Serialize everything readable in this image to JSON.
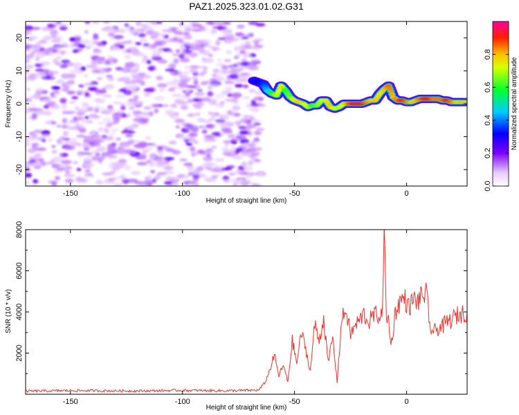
{
  "title": "PAZ1.2025.323.01.02.G31",
  "chart_data": [
    {
      "type": "heatmap",
      "xlabel": "Height of straight line (km)",
      "ylabel": "Frequency (Hz)",
      "xlim": [
        -170,
        27
      ],
      "ylim": [
        -25,
        25
      ],
      "xticks": [
        -150,
        -100,
        -50,
        0
      ],
      "yticks": [
        -20,
        -10,
        0,
        10,
        20
      ],
      "colorbar": {
        "label": "Normalized spectral amplitude",
        "range": [
          0,
          1
        ],
        "ticks": [
          "0.0",
          "0.2",
          "0.4",
          "0.6",
          "0.8"
        ],
        "colormap": "white-violet-blue-cyan-green-yellow-red-magenta"
      },
      "noise_region_x": [
        -170,
        -65
      ],
      "ridge": {
        "x": [
          -68,
          -64,
          -62,
          -60,
          -58,
          -56,
          -54,
          -52,
          -50,
          -48,
          -46,
          -44,
          -42,
          -40,
          -38,
          -36,
          -34,
          -32,
          -30,
          -28,
          -26,
          -24,
          -22,
          -20,
          -18,
          -16,
          -14,
          -12,
          -10,
          -8,
          -6,
          -4,
          -2,
          0,
          2,
          4,
          6,
          8,
          10,
          12,
          14,
          16,
          18,
          20,
          22,
          24,
          27
        ],
        "freq": [
          7,
          6,
          4,
          3,
          2.5,
          5.5,
          4,
          2,
          1,
          0.5,
          0,
          -1,
          -0.5,
          -0.5,
          1,
          1,
          -1,
          -1.5,
          -1,
          0,
          0,
          0,
          0,
          0,
          0.5,
          1,
          1,
          3,
          4.5,
          5.5,
          2,
          1,
          1,
          0.5,
          0.5,
          1,
          1.5,
          1.5,
          1.5,
          1.5,
          1.5,
          1,
          1,
          0.5,
          0.5,
          0.5,
          0.5
        ],
        "amp": [
          0.3,
          0.35,
          0.45,
          0.6,
          0.7,
          0.75,
          0.6,
          0.65,
          0.75,
          0.8,
          0.75,
          0.7,
          0.6,
          0.65,
          0.7,
          0.75,
          0.8,
          0.7,
          0.7,
          0.75,
          0.85,
          0.9,
          0.95,
          0.9,
          0.85,
          0.8,
          0.8,
          0.75,
          0.8,
          0.85,
          0.8,
          0.85,
          0.9,
          0.85,
          0.8,
          0.8,
          0.85,
          0.9,
          0.9,
          0.85,
          0.85,
          0.85,
          0.9,
          0.85,
          0.8,
          0.8,
          0.8
        ]
      }
    },
    {
      "type": "line",
      "xlabel": "Height of straight line (km)",
      "ylabel": "SNR (10 * v/v)",
      "xlim": [
        -170,
        27
      ],
      "ylim": [
        0,
        8000
      ],
      "xticks": [
        -150,
        -100,
        -50,
        0
      ],
      "yticks": [
        2000,
        4000,
        6000,
        8000
      ],
      "series": [
        {
          "color": "#e8322e",
          "x": [
            -170,
            -150,
            -120,
            -100,
            -80,
            -66,
            -63,
            -61,
            -59,
            -57,
            -55,
            -53,
            -51,
            -49,
            -47,
            -45,
            -43,
            -41,
            -39,
            -37,
            -35,
            -33,
            -31,
            -29,
            -27,
            -25,
            -23,
            -21,
            -19,
            -17,
            -15,
            -13,
            -11,
            -10,
            -9,
            -8,
            -7,
            -5,
            -3,
            -1,
            1,
            3,
            5,
            7,
            9,
            10,
            12,
            14,
            16,
            18,
            20,
            22,
            24,
            27
          ],
          "y": [
            150,
            180,
            160,
            190,
            170,
            200,
            600,
            1200,
            1900,
            900,
            1400,
            600,
            2600,
            1500,
            3000,
            2200,
            1100,
            3400,
            2600,
            3700,
            1500,
            2800,
            600,
            3600,
            4100,
            2900,
            3300,
            3600,
            3900,
            3500,
            3800,
            3900,
            3700,
            8000,
            3500,
            3700,
            2300,
            4000,
            4500,
            4700,
            4200,
            4600,
            4500,
            4800,
            4900,
            3400,
            3000,
            3200,
            3300,
            3500,
            3600,
            3800,
            3900,
            4000
          ]
        }
      ]
    }
  ]
}
